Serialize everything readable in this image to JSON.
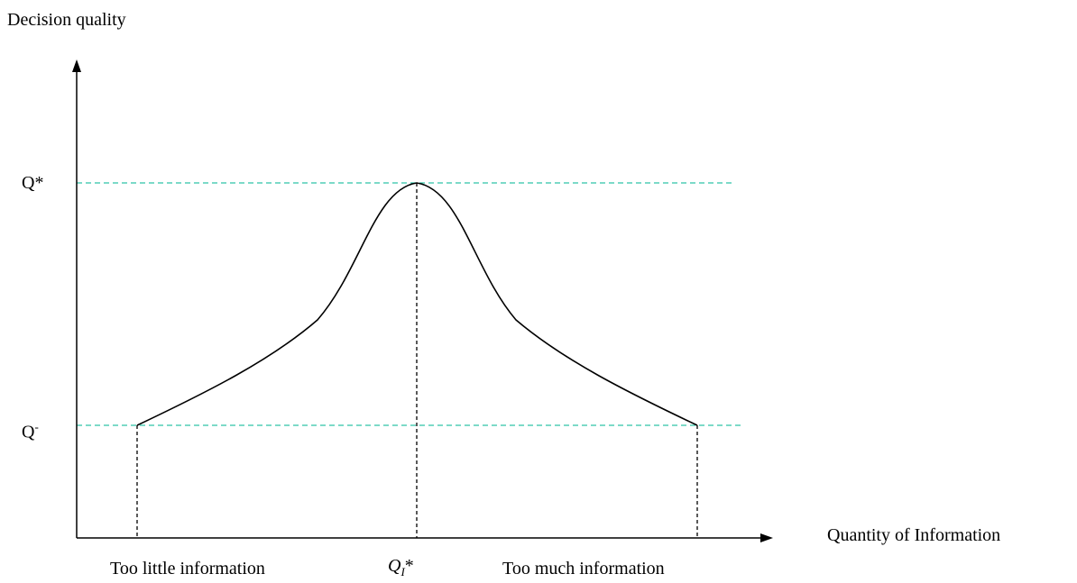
{
  "y_axis_label": "Decision quality",
  "x_axis_label": "Quantity of Information",
  "peak_label": {
    "base": "Q",
    "sup": "*"
  },
  "low_label": {
    "base": "Q",
    "sup": "-"
  },
  "peak_x_label": {
    "base": "Q",
    "sub": "I",
    "sup": "*"
  },
  "left_region_label": "Too little information",
  "right_region_label": "Too much information",
  "colors": {
    "guide_lines": "#2ec4a6",
    "curve": "#000000",
    "axes": "#000000"
  }
}
